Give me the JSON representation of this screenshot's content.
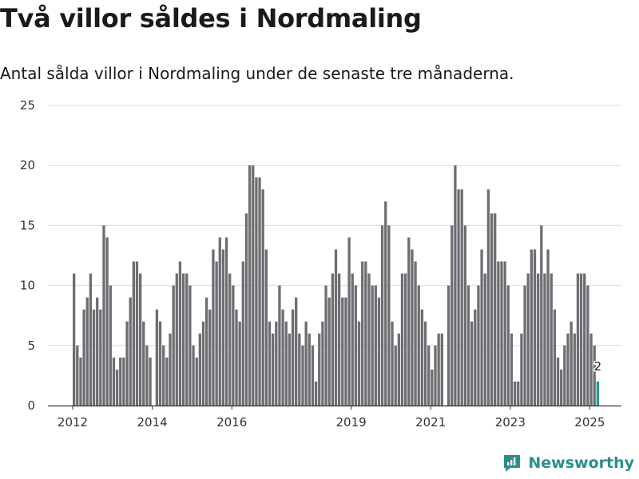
{
  "header": {
    "title": "Två villor såldes i Nordmaling",
    "subtitle": "Antal sålda villor i Nordmaling under de senaste tre månaderna."
  },
  "brand": {
    "name": "Newsworthy",
    "icon": "newsworthy-logo-icon",
    "color": "#2b8f87"
  },
  "colors": {
    "bar": "#6e6d72",
    "highlight": "#24998f",
    "grid": "#dcdcdc",
    "axis": "#333333"
  },
  "chart_data": {
    "type": "bar",
    "start": "2012-01",
    "x_ticks": [
      "2012",
      "2014",
      "2016",
      "2019",
      "2021",
      "2023",
      "2025"
    ],
    "y_ticks": [
      0,
      5,
      10,
      15,
      20,
      25
    ],
    "ylim": [
      0,
      25
    ],
    "grid": true,
    "highlight_last": true,
    "last_label": "2",
    "values": [
      11,
      5,
      4,
      8,
      9,
      11,
      8,
      9,
      8,
      15,
      14,
      10,
      4,
      3,
      4,
      4,
      7,
      9,
      12,
      12,
      11,
      7,
      5,
      4,
      0,
      8,
      7,
      5,
      4,
      6,
      10,
      11,
      12,
      11,
      11,
      10,
      5,
      4,
      6,
      7,
      9,
      8,
      13,
      12,
      14,
      13,
      14,
      11,
      10,
      8,
      7,
      12,
      16,
      20,
      20,
      19,
      19,
      18,
      13,
      7,
      6,
      7,
      10,
      8,
      7,
      6,
      8,
      9,
      6,
      5,
      7,
      6,
      5,
      2,
      6,
      7,
      10,
      9,
      11,
      13,
      11,
      9,
      9,
      14,
      11,
      10,
      7,
      12,
      12,
      11,
      10,
      10,
      9,
      15,
      17,
      15,
      7,
      5,
      6,
      11,
      11,
      14,
      13,
      12,
      10,
      8,
      7,
      5,
      3,
      5,
      6,
      6,
      0,
      10,
      15,
      20,
      18,
      18,
      15,
      10,
      7,
      8,
      10,
      13,
      11,
      18,
      16,
      16,
      12,
      12,
      12,
      10,
      6,
      2,
      2,
      6,
      10,
      11,
      13,
      13,
      11,
      15,
      11,
      13,
      11,
      8,
      4,
      3,
      5,
      6,
      7,
      6,
      11,
      11,
      11,
      10,
      6,
      5,
      2
    ]
  }
}
